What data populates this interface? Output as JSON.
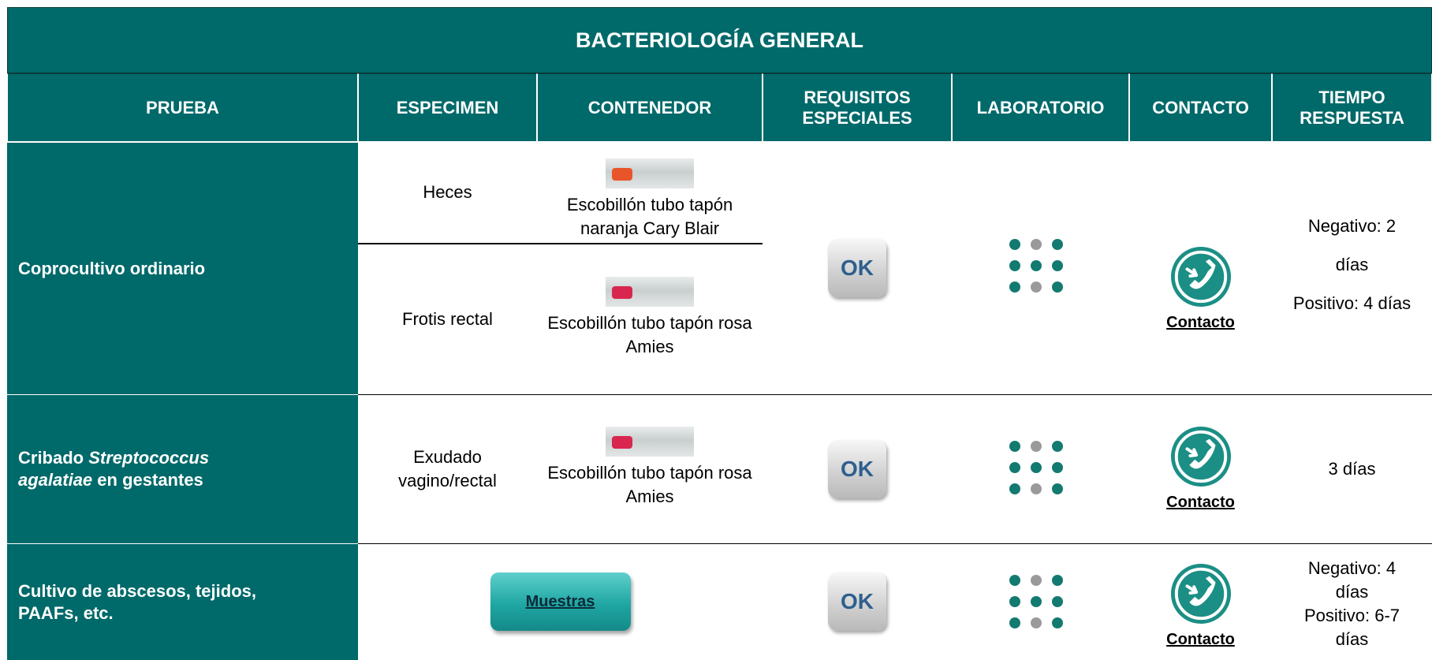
{
  "header": {
    "title": "BACTERIOLOGÍA GENERAL"
  },
  "table": {
    "columns": [
      "PRUEBA",
      "ESPECIMEN",
      "CONTENEDOR",
      "REQUISITOS ESPECIALES",
      "LABORATORIO",
      "CONTACTO",
      "TIEMPO RESPUESTA"
    ],
    "rows": [
      {
        "prueba": "Coprocultivo ordinario",
        "specimens": [
          {
            "especimen": "Heces",
            "contenedor": "Escobillón tubo tapón naranja Cary Blair"
          },
          {
            "especimen": "Frotis rectal",
            "contenedor": "Escobillón tubo tapón rosa Amies"
          }
        ],
        "requisitos": "OK",
        "contacto": "Contacto",
        "tiempo": [
          "Negativo: 2 días",
          "Positivo: 4 días"
        ]
      },
      {
        "prueba": {
          "before": "Cribado",
          "italic": "Streptococcus agalatiae",
          "after": "en gestantes"
        },
        "specimens": [
          {
            "especimen": "Exudado vagino/rectal",
            "contenedor": "Escobillón tubo tapón rosa Amies"
          }
        ],
        "requisitos": "OK",
        "contacto": "Contacto",
        "tiempo": [
          "3 días"
        ]
      },
      {
        "prueba": "Cultivo de abscesos, tejidos, PAAFs, etc.",
        "muestras": "Muestras",
        "requisitos": "OK",
        "contacto": "Contacto",
        "tiempo": [
          "Negativo: 4 días",
          "Positivo: 6-7 días"
        ]
      }
    ]
  }
}
